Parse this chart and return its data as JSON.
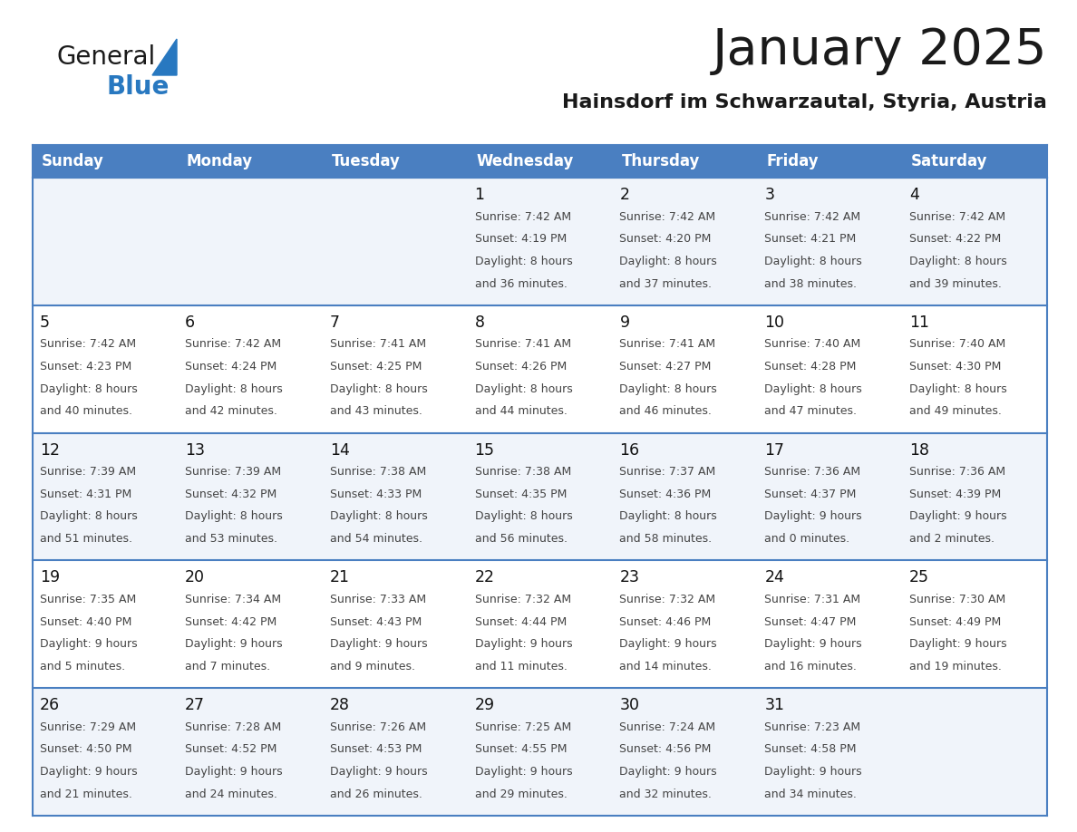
{
  "title": "January 2025",
  "subtitle": "Hainsdorf im Schwarzautal, Styria, Austria",
  "days_of_week": [
    "Sunday",
    "Monday",
    "Tuesday",
    "Wednesday",
    "Thursday",
    "Friday",
    "Saturday"
  ],
  "header_bg": "#4a7fc1",
  "header_text": "#ffffff",
  "row_bg_odd": "#f0f4fa",
  "row_bg_even": "#ffffff",
  "cell_text_color": "#444444",
  "day_num_color": "#111111",
  "grid_line_color": "#4a7fc1",
  "title_color": "#1a1a1a",
  "subtitle_color": "#1a1a1a",
  "logo_general_color": "#1a1a1a",
  "logo_blue_color": "#2878c0",
  "calendar_data": [
    [
      null,
      null,
      null,
      {
        "day": 1,
        "sunrise": "7:42 AM",
        "sunset": "4:19 PM",
        "daylight": "8 hours",
        "daylight2": "and 36 minutes."
      },
      {
        "day": 2,
        "sunrise": "7:42 AM",
        "sunset": "4:20 PM",
        "daylight": "8 hours",
        "daylight2": "and 37 minutes."
      },
      {
        "day": 3,
        "sunrise": "7:42 AM",
        "sunset": "4:21 PM",
        "daylight": "8 hours",
        "daylight2": "and 38 minutes."
      },
      {
        "day": 4,
        "sunrise": "7:42 AM",
        "sunset": "4:22 PM",
        "daylight": "8 hours",
        "daylight2": "and 39 minutes."
      }
    ],
    [
      {
        "day": 5,
        "sunrise": "7:42 AM",
        "sunset": "4:23 PM",
        "daylight": "8 hours",
        "daylight2": "and 40 minutes."
      },
      {
        "day": 6,
        "sunrise": "7:42 AM",
        "sunset": "4:24 PM",
        "daylight": "8 hours",
        "daylight2": "and 42 minutes."
      },
      {
        "day": 7,
        "sunrise": "7:41 AM",
        "sunset": "4:25 PM",
        "daylight": "8 hours",
        "daylight2": "and 43 minutes."
      },
      {
        "day": 8,
        "sunrise": "7:41 AM",
        "sunset": "4:26 PM",
        "daylight": "8 hours",
        "daylight2": "and 44 minutes."
      },
      {
        "day": 9,
        "sunrise": "7:41 AM",
        "sunset": "4:27 PM",
        "daylight": "8 hours",
        "daylight2": "and 46 minutes."
      },
      {
        "day": 10,
        "sunrise": "7:40 AM",
        "sunset": "4:28 PM",
        "daylight": "8 hours",
        "daylight2": "and 47 minutes."
      },
      {
        "day": 11,
        "sunrise": "7:40 AM",
        "sunset": "4:30 PM",
        "daylight": "8 hours",
        "daylight2": "and 49 minutes."
      }
    ],
    [
      {
        "day": 12,
        "sunrise": "7:39 AM",
        "sunset": "4:31 PM",
        "daylight": "8 hours",
        "daylight2": "and 51 minutes."
      },
      {
        "day": 13,
        "sunrise": "7:39 AM",
        "sunset": "4:32 PM",
        "daylight": "8 hours",
        "daylight2": "and 53 minutes."
      },
      {
        "day": 14,
        "sunrise": "7:38 AM",
        "sunset": "4:33 PM",
        "daylight": "8 hours",
        "daylight2": "and 54 minutes."
      },
      {
        "day": 15,
        "sunrise": "7:38 AM",
        "sunset": "4:35 PM",
        "daylight": "8 hours",
        "daylight2": "and 56 minutes."
      },
      {
        "day": 16,
        "sunrise": "7:37 AM",
        "sunset": "4:36 PM",
        "daylight": "8 hours",
        "daylight2": "and 58 minutes."
      },
      {
        "day": 17,
        "sunrise": "7:36 AM",
        "sunset": "4:37 PM",
        "daylight": "9 hours",
        "daylight2": "and 0 minutes."
      },
      {
        "day": 18,
        "sunrise": "7:36 AM",
        "sunset": "4:39 PM",
        "daylight": "9 hours",
        "daylight2": "and 2 minutes."
      }
    ],
    [
      {
        "day": 19,
        "sunrise": "7:35 AM",
        "sunset": "4:40 PM",
        "daylight": "9 hours",
        "daylight2": "and 5 minutes."
      },
      {
        "day": 20,
        "sunrise": "7:34 AM",
        "sunset": "4:42 PM",
        "daylight": "9 hours",
        "daylight2": "and 7 minutes."
      },
      {
        "day": 21,
        "sunrise": "7:33 AM",
        "sunset": "4:43 PM",
        "daylight": "9 hours",
        "daylight2": "and 9 minutes."
      },
      {
        "day": 22,
        "sunrise": "7:32 AM",
        "sunset": "4:44 PM",
        "daylight": "9 hours",
        "daylight2": "and 11 minutes."
      },
      {
        "day": 23,
        "sunrise": "7:32 AM",
        "sunset": "4:46 PM",
        "daylight": "9 hours",
        "daylight2": "and 14 minutes."
      },
      {
        "day": 24,
        "sunrise": "7:31 AM",
        "sunset": "4:47 PM",
        "daylight": "9 hours",
        "daylight2": "and 16 minutes."
      },
      {
        "day": 25,
        "sunrise": "7:30 AM",
        "sunset": "4:49 PM",
        "daylight": "9 hours",
        "daylight2": "and 19 minutes."
      }
    ],
    [
      {
        "day": 26,
        "sunrise": "7:29 AM",
        "sunset": "4:50 PM",
        "daylight": "9 hours",
        "daylight2": "and 21 minutes."
      },
      {
        "day": 27,
        "sunrise": "7:28 AM",
        "sunset": "4:52 PM",
        "daylight": "9 hours",
        "daylight2": "and 24 minutes."
      },
      {
        "day": 28,
        "sunrise": "7:26 AM",
        "sunset": "4:53 PM",
        "daylight": "9 hours",
        "daylight2": "and 26 minutes."
      },
      {
        "day": 29,
        "sunrise": "7:25 AM",
        "sunset": "4:55 PM",
        "daylight": "9 hours",
        "daylight2": "and 29 minutes."
      },
      {
        "day": 30,
        "sunrise": "7:24 AM",
        "sunset": "4:56 PM",
        "daylight": "9 hours",
        "daylight2": "and 32 minutes."
      },
      {
        "day": 31,
        "sunrise": "7:23 AM",
        "sunset": "4:58 PM",
        "daylight": "9 hours",
        "daylight2": "and 34 minutes."
      },
      null
    ]
  ]
}
